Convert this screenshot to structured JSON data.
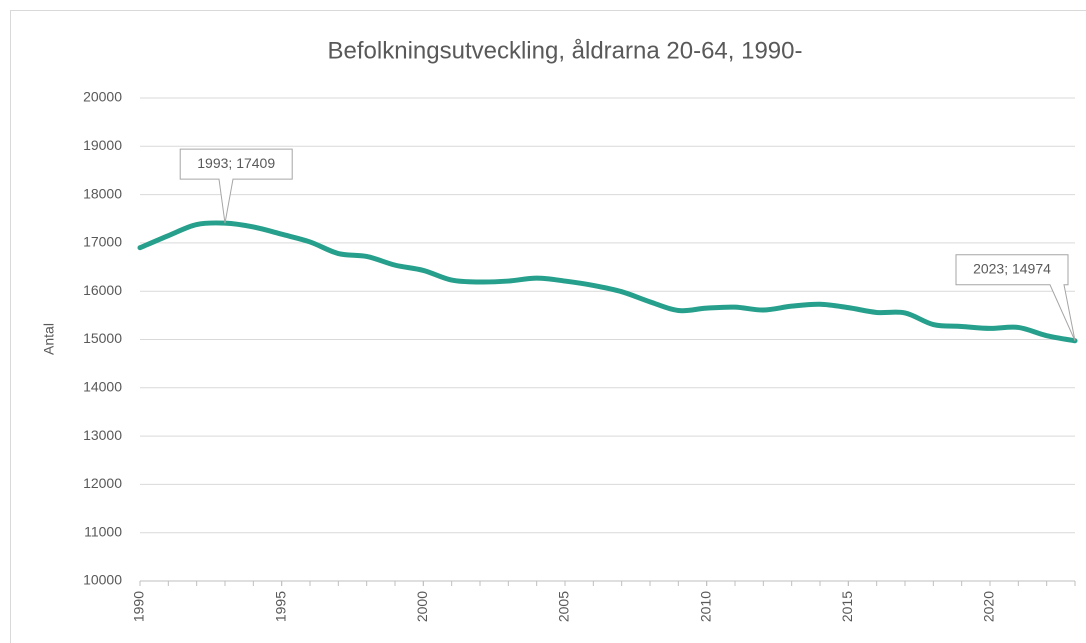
{
  "chart_data": {
    "type": "line",
    "title": "Befolkningsutveckling, åldrarna 20-64, 1990-",
    "y_label": "Antal",
    "x": [
      1990,
      1991,
      1992,
      1993,
      1994,
      1995,
      1996,
      1997,
      1998,
      1999,
      2000,
      2001,
      2002,
      2003,
      2004,
      2005,
      2006,
      2007,
      2008,
      2009,
      2010,
      2011,
      2012,
      2013,
      2014,
      2015,
      2016,
      2017,
      2018,
      2019,
      2020,
      2021,
      2022,
      2023
    ],
    "values": [
      16900,
      17150,
      17380,
      17409,
      17330,
      17180,
      17020,
      16780,
      16720,
      16540,
      16430,
      16230,
      16190,
      16210,
      16270,
      16210,
      16120,
      15990,
      15780,
      15600,
      15650,
      15670,
      15610,
      15690,
      15730,
      15660,
      15560,
      15550,
      15310,
      15270,
      15230,
      15250,
      15080,
      14974
    ],
    "value_labels": [
      null,
      null,
      null,
      "1993; 17409",
      null,
      null,
      null,
      null,
      null,
      null,
      null,
      null,
      null,
      null,
      null,
      null,
      null,
      null,
      null,
      null,
      null,
      null,
      null,
      null,
      null,
      null,
      null,
      null,
      null,
      null,
      null,
      null,
      null,
      "2023; 14974"
    ],
    "color": "#26a08c",
    "xlim": [
      1990,
      2023
    ],
    "xticks": [
      1990,
      1995,
      2000,
      2005,
      2010,
      2015,
      2020
    ],
    "ylim": [
      10000,
      20000
    ],
    "yticks": [
      10000,
      11000,
      12000,
      13000,
      14000,
      15000,
      16000,
      17000,
      18000,
      19000,
      20000
    ],
    "grid": true
  }
}
